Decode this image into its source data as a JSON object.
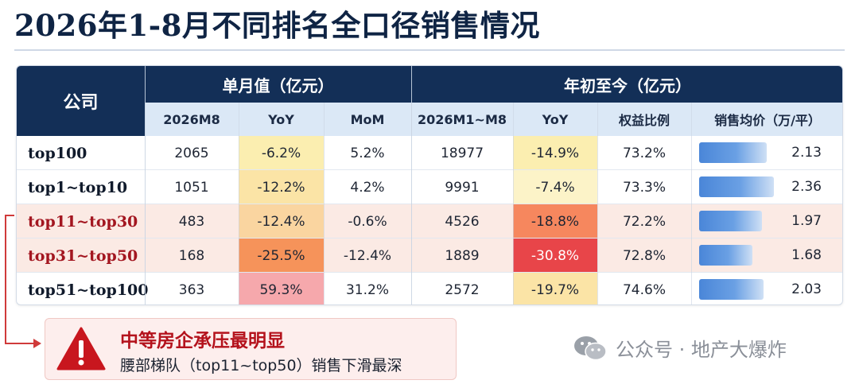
{
  "title": "2026年1-8月不同排名全口径销售情况",
  "table": {
    "company_header": "公司",
    "group_monthly": "单月值（亿元）",
    "group_ytd": "年初至今（亿元）",
    "sub_headers": [
      "2026M8",
      "YoY",
      "MoM",
      "2026M1~M8",
      "YoY",
      "权益比例",
      "销售均价（万/平）"
    ],
    "rows": [
      {
        "company": "top100",
        "m8": "2065",
        "m_yoy": "-6.2%",
        "mom": "5.2%",
        "ytd": "18977",
        "ytd_yoy": "-14.9%",
        "equity": "73.2%",
        "price": "2.13",
        "price_value": 2.13,
        "highlight": false
      },
      {
        "company": "top1~top10",
        "m8": "1051",
        "m_yoy": "-12.2%",
        "mom": "4.2%",
        "ytd": "9991",
        "ytd_yoy": "-7.4%",
        "equity": "73.3%",
        "price": "2.36",
        "price_value": 2.36,
        "highlight": false
      },
      {
        "company": "top11~top30",
        "m8": "483",
        "m_yoy": "-12.4%",
        "mom": "-0.6%",
        "ytd": "4526",
        "ytd_yoy": "-18.8%",
        "equity": "72.2%",
        "price": "1.97",
        "price_value": 1.97,
        "highlight": true
      },
      {
        "company": "top31~top50",
        "m8": "168",
        "m_yoy": "-25.5%",
        "mom": "-12.4%",
        "ytd": "1889",
        "ytd_yoy": "-30.8%",
        "equity": "72.8%",
        "price": "1.68",
        "price_value": 1.68,
        "highlight": true
      },
      {
        "company": "top51~top100",
        "m8": "363",
        "m_yoy": "59.3%",
        "mom": "31.2%",
        "ytd": "2572",
        "ytd_yoy": "-19.7%",
        "equity": "74.6%",
        "price": "2.03",
        "price_value": 2.03,
        "highlight": false
      }
    ],
    "yoy_colors": {
      "m_yoy": [
        "#fbeeb0",
        "#fbe4a6",
        "#fad5a0",
        "#f6935a",
        "#f6a8ac"
      ],
      "ytd_yoy": [
        "#fbeeb0",
        "#fcf3c8",
        "#f6875e",
        "#e84549",
        "#fbe4a6"
      ]
    }
  },
  "callout": {
    "warning_icon": "warning-triangle-icon",
    "headline": "中等房企承压最明显",
    "detail": "腰部梯队（top11~top50）销售下滑最深",
    "accent_color": "#b4121c"
  },
  "watermark": {
    "icon": "wechat-icon",
    "text": "公众号 · 地产大爆炸"
  }
}
